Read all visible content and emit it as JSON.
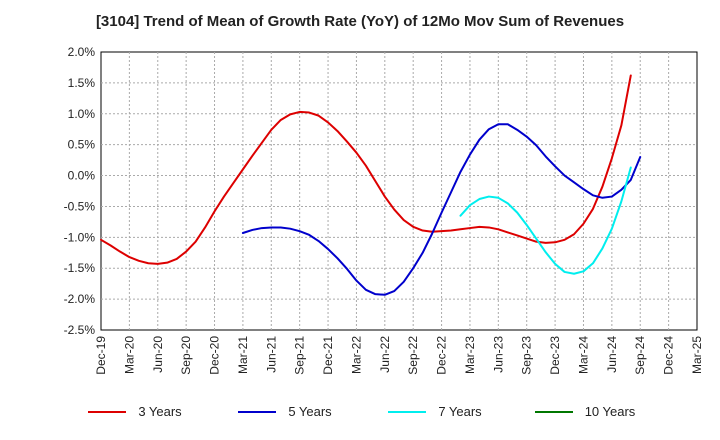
{
  "chart_data": {
    "type": "line",
    "title": "[3104]  Trend of Mean of Growth Rate (YoY) of 12Mo Mov Sum of Revenues",
    "xlabel": "",
    "ylabel": "",
    "ylim": [
      -2.5,
      2.0
    ],
    "ytick_values": [
      2.0,
      1.5,
      1.0,
      0.5,
      0.0,
      -0.5,
      -1.0,
      -1.5,
      -2.0,
      -2.5
    ],
    "ytick_labels": [
      "2.0%",
      "1.5%",
      "1.0%",
      "0.5%",
      "0.0%",
      "-0.5%",
      "-1.0%",
      "-1.5%",
      "-2.0%",
      "-2.5%"
    ],
    "x_categories": [
      "Dec-19",
      "Mar-20",
      "Jun-20",
      "Sep-20",
      "Dec-20",
      "Mar-21",
      "Jun-21",
      "Sep-21",
      "Dec-21",
      "Mar-22",
      "Jun-22",
      "Sep-22",
      "Dec-22",
      "Mar-23",
      "Jun-23",
      "Sep-23",
      "Dec-23",
      "Mar-24",
      "Jun-24",
      "Sep-24",
      "Dec-24",
      "Mar-25"
    ],
    "grid": true,
    "legend_position": "bottom",
    "series": [
      {
        "name": "3 Years",
        "color": "#dd0000",
        "start_index": 0,
        "values": [
          -1.04,
          -1.13,
          -1.23,
          -1.32,
          -1.38,
          -1.42,
          -1.43,
          -1.41,
          -1.35,
          -1.23,
          -1.07,
          -0.84,
          -0.58,
          -0.34,
          -0.12,
          0.1,
          0.32,
          0.53,
          0.74,
          0.9,
          0.99,
          1.03,
          1.02,
          0.97,
          0.86,
          0.72,
          0.55,
          0.37,
          0.16,
          -0.09,
          -0.34,
          -0.55,
          -0.72,
          -0.83,
          -0.89,
          -0.91,
          -0.9,
          -0.89,
          -0.87,
          -0.85,
          -0.83,
          -0.84,
          -0.87,
          -0.92,
          -0.97,
          -1.02,
          -1.07,
          -1.09,
          -1.08,
          -1.04,
          -0.95,
          -0.78,
          -0.54,
          -0.18,
          0.28,
          0.81,
          1.62
        ]
      },
      {
        "name": "5 Years",
        "color": "#0000cc",
        "start_index": 15,
        "values": [
          -0.93,
          -0.88,
          -0.85,
          -0.84,
          -0.84,
          -0.86,
          -0.9,
          -0.96,
          -1.06,
          -1.19,
          -1.34,
          -1.51,
          -1.7,
          -1.85,
          -1.92,
          -1.93,
          -1.87,
          -1.72,
          -1.5,
          -1.25,
          -0.94,
          -0.6,
          -0.27,
          0.06,
          0.34,
          0.58,
          0.75,
          0.83,
          0.83,
          0.74,
          0.63,
          0.49,
          0.31,
          0.15,
          0.0,
          -0.11,
          -0.22,
          -0.32,
          -0.36,
          -0.34,
          -0.23,
          -0.07,
          0.3
        ]
      },
      {
        "name": "7 Years",
        "color": "#00eeee",
        "start_index": 38,
        "values": [
          -0.65,
          -0.48,
          -0.38,
          -0.34,
          -0.36,
          -0.45,
          -0.6,
          -0.8,
          -1.02,
          -1.24,
          -1.43,
          -1.56,
          -1.59,
          -1.55,
          -1.42,
          -1.18,
          -0.86,
          -0.42,
          0.13
        ]
      },
      {
        "name": "10 Years",
        "color": "#007700",
        "start_index": 0,
        "values": []
      }
    ]
  }
}
